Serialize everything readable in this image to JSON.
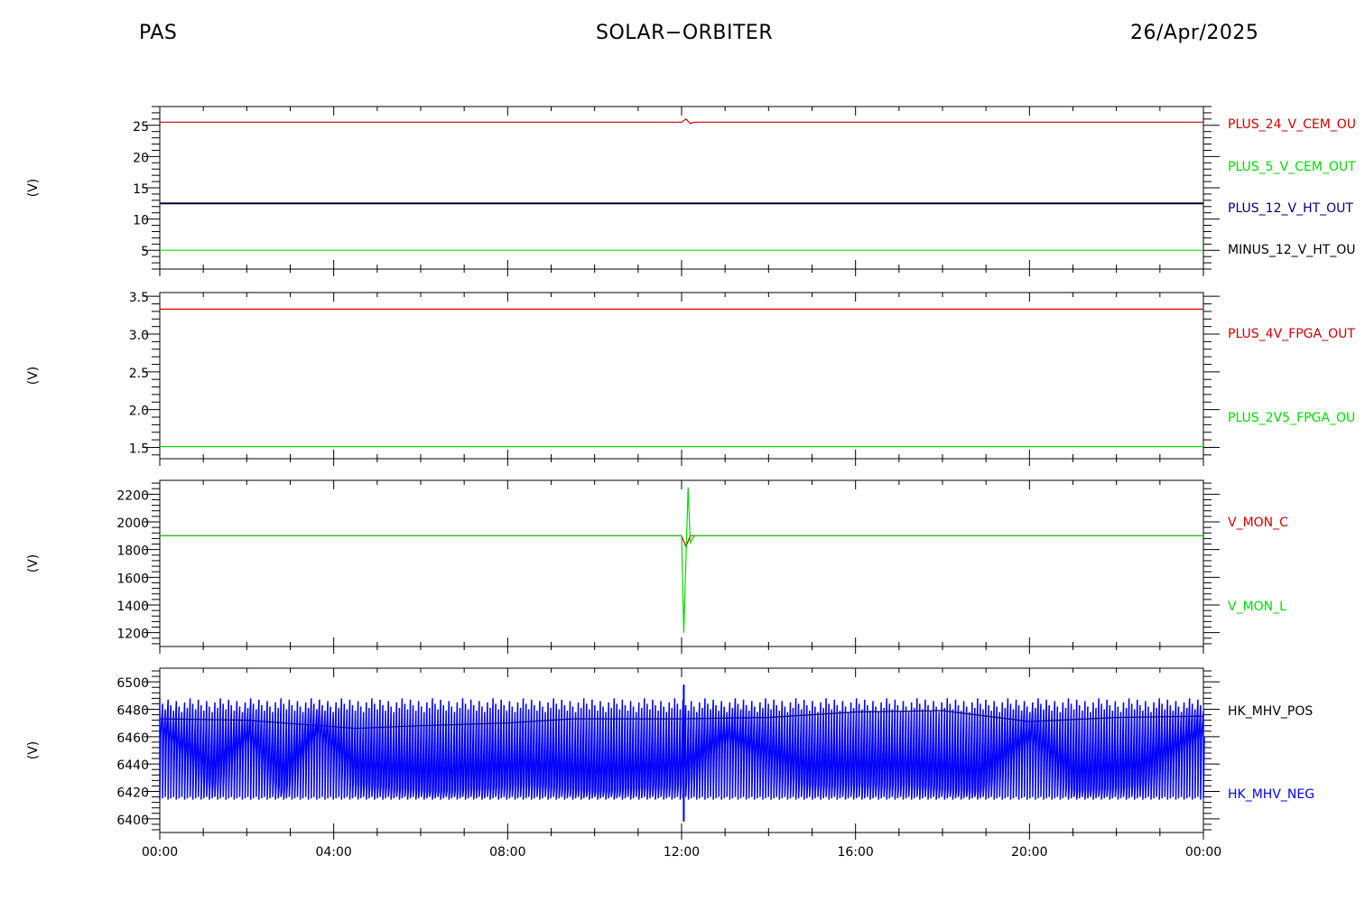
{
  "header": {
    "instrument": "PAS",
    "mission": "SOLAR−ORBITER",
    "date": "26/Apr/2025"
  },
  "colors": {
    "red": "#d00000",
    "green": "#00dd00",
    "navy": "#000080",
    "black": "#000000",
    "blue": "#0000ff"
  },
  "chart_data": [
    {
      "type": "line",
      "ylabel": "(V)",
      "ylim": [
        2,
        28
      ],
      "yticks": [
        5,
        10,
        15,
        20,
        25
      ],
      "ytick_labels": [
        "5",
        "10",
        "15",
        "20",
        "25"
      ],
      "x_unit": "hours",
      "series": [
        {
          "name": "PLUS_24_V_CEM_OU",
          "color": "red",
          "x": [
            0,
            12.0,
            12.1,
            12.2,
            12.3,
            24
          ],
          "y": [
            25.5,
            25.5,
            26.0,
            25.3,
            25.5,
            25.5
          ]
        },
        {
          "name": "PLUS_5_V_CEM_OUT",
          "color": "green",
          "x": [
            0,
            24
          ],
          "y": [
            5.0,
            5.0
          ]
        },
        {
          "name": "PLUS_12_V_HT_OUT",
          "color": "navy",
          "x": [
            0,
            24
          ],
          "y": [
            12.5,
            12.5
          ]
        },
        {
          "name": "MINUS_12_V_HT_OU",
          "color": "black",
          "x": [
            0,
            24
          ],
          "y": [
            12.5,
            12.5
          ]
        }
      ]
    },
    {
      "type": "line",
      "ylabel": "(V)",
      "ylim": [
        1.35,
        3.55
      ],
      "yticks": [
        1.5,
        2.0,
        2.5,
        3.0,
        3.5
      ],
      "ytick_labels": [
        "1.5",
        "2.0",
        "2.5",
        "3.0",
        "3.5"
      ],
      "x_unit": "hours",
      "series": [
        {
          "name": "PLUS_4V_FPGA_OUT",
          "color": "red",
          "x": [
            0,
            24
          ],
          "y": [
            3.33,
            3.33
          ]
        },
        {
          "name": "PLUS_2V5_FPGA_OU",
          "color": "green",
          "x": [
            0,
            24
          ],
          "y": [
            1.51,
            1.51
          ]
        }
      ]
    },
    {
      "type": "line",
      "ylabel": "(V)",
      "ylim": [
        1100,
        2300
      ],
      "yticks": [
        1200,
        1400,
        1600,
        1800,
        2000,
        2200
      ],
      "ytick_labels": [
        "1200",
        "1400",
        "1600",
        "1800",
        "2000",
        "2200"
      ],
      "x_unit": "hours",
      "series": [
        {
          "name": "V_MON_C",
          "color": "red",
          "x": [
            0,
            12.0,
            12.1,
            12.2,
            24
          ],
          "y": [
            1900,
            1900,
            1820,
            1900,
            1900
          ]
        },
        {
          "name": "V_MON_L",
          "color": "green",
          "x": [
            0,
            12.0,
            12.05,
            12.15,
            12.2,
            12.3,
            24
          ],
          "y": [
            1900,
            1900,
            1200,
            2250,
            1850,
            1900,
            1900
          ]
        }
      ]
    },
    {
      "type": "line",
      "ylabel": "(V)",
      "ylim": [
        6390,
        6510
      ],
      "yticks": [
        6400,
        6420,
        6440,
        6460,
        6480,
        6500
      ],
      "ytick_labels": [
        "6400",
        "6420",
        "6440",
        "6460",
        "6480",
        "6500"
      ],
      "x_unit": "hours",
      "series": [
        {
          "name": "HK_MHV_POS",
          "color": "black",
          "x": [
            0,
            2,
            4.5,
            6,
            8,
            9.5,
            12,
            14,
            16,
            18,
            20,
            22,
            24
          ],
          "y": [
            6473,
            6472,
            6466,
            6468,
            6470,
            6473,
            6473,
            6474,
            6478,
            6479,
            6471,
            6474,
            6475
          ]
        },
        {
          "name": "HK_MHV_NEG",
          "color": "blue",
          "band_low": 6414,
          "band_high": 6488,
          "x": [
            0,
            1.2,
            2.0,
            2.8,
            3.6,
            4.5,
            6.3,
            8.5,
            10.0,
            12.0,
            13.0,
            14.8,
            16.0,
            17.2,
            18.8,
            20.0,
            21.0,
            22.5,
            24
          ],
          "y": [
            6460,
            6425,
            6455,
            6420,
            6460,
            6425,
            6420,
            6425,
            6420,
            6425,
            6455,
            6425,
            6425,
            6425,
            6420,
            6455,
            6420,
            6425,
            6460
          ]
        }
      ]
    }
  ],
  "x_axis": {
    "xlim": [
      0,
      24
    ],
    "ticks": [
      0,
      4,
      8,
      12,
      16,
      20,
      24
    ],
    "tick_labels": [
      "00:00",
      "04:00",
      "08:00",
      "12:00",
      "16:00",
      "20:00",
      "00:00"
    ]
  }
}
